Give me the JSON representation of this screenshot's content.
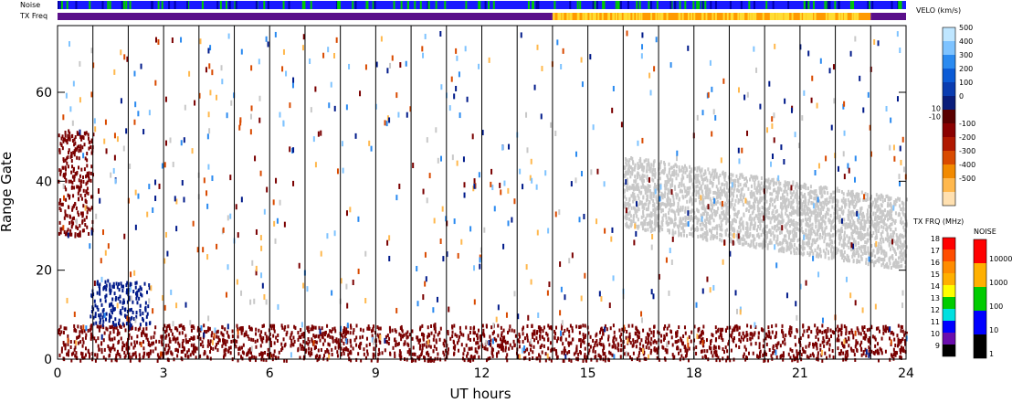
{
  "strip_labels": {
    "noise": "Noise",
    "tx_freq": "TX Freq"
  },
  "chart_data": {
    "type": "heatmap",
    "xlabel": "UT hours",
    "ylabel": "Range Gate",
    "xlim": [
      0,
      24
    ],
    "ylim": [
      0,
      75
    ],
    "x_ticks": [
      "0",
      "3",
      "6",
      "9",
      "12",
      "15",
      "18",
      "21",
      "24"
    ],
    "y_ticks": [
      "0",
      "20",
      "40",
      "60"
    ],
    "vertical_lines_hours": [
      1,
      2,
      3,
      4,
      5,
      6,
      7,
      8,
      9,
      10,
      11,
      12,
      13,
      14,
      15,
      16,
      17,
      18,
      19,
      20,
      21,
      22,
      23
    ],
    "tx_freq_strip": [
      {
        "from": 0,
        "to": 14,
        "color": "#5a0f8a"
      },
      {
        "from": 14,
        "to": 23,
        "color": "#ff9a00"
      },
      {
        "from": 23,
        "to": 24,
        "color": "#5a0f8a"
      }
    ],
    "echo_regions": [
      {
        "name": "ground scatter band",
        "x": [
          16,
          24
        ],
        "y": [
          18,
          50
        ],
        "color": "#c8c8c8"
      },
      {
        "name": "near-range strong echoes",
        "x": [
          0,
          24
        ],
        "y": [
          0,
          8
        ],
        "color": "#7a0000"
      },
      {
        "name": "early patch",
        "x": [
          0,
          1
        ],
        "y": [
          28,
          52
        ],
        "color": "#7a0000"
      },
      {
        "name": "blue patch",
        "x": [
          0.9,
          2.6
        ],
        "y": [
          8,
          18
        ],
        "color": "#001a8a"
      }
    ],
    "velocity_colorbar": {
      "title": "VELO (km/s)",
      "labels": [
        "500",
        "400",
        "300",
        "200",
        "100",
        "0",
        "10",
        "-10",
        "-100",
        "-200",
        "-300",
        "-400",
        "-500"
      ],
      "colors": [
        "#bfe6ff",
        "#7ec3ff",
        "#2a8af0",
        "#0b5bd6",
        "#0a3cb0",
        "#0a1d7a",
        "#5a0000",
        "#8a0000",
        "#b01800",
        "#d94a00",
        "#f28a00",
        "#ffb84d",
        "#ffe0b0"
      ]
    },
    "txfreq_colorbar": {
      "title": "TX FRQ (MHz)",
      "labels": [
        "18",
        "17",
        "16",
        "15",
        "14",
        "13",
        "12",
        "11",
        "10",
        "9"
      ],
      "colors": [
        "#ff0000",
        "#ff4d00",
        "#ff8c00",
        "#ffb000",
        "#ffff00",
        "#00cc00",
        "#00e0e0",
        "#0000ff",
        "#6a0dad",
        "#000000"
      ]
    },
    "noise_colorbar": {
      "title": "NOISE",
      "labels": [
        "10000",
        "1000",
        "100",
        "10",
        "1"
      ],
      "colors": [
        "#ff0000",
        "#ffb000",
        "#00cc00",
        "#0000ff",
        "#000000"
      ]
    }
  }
}
